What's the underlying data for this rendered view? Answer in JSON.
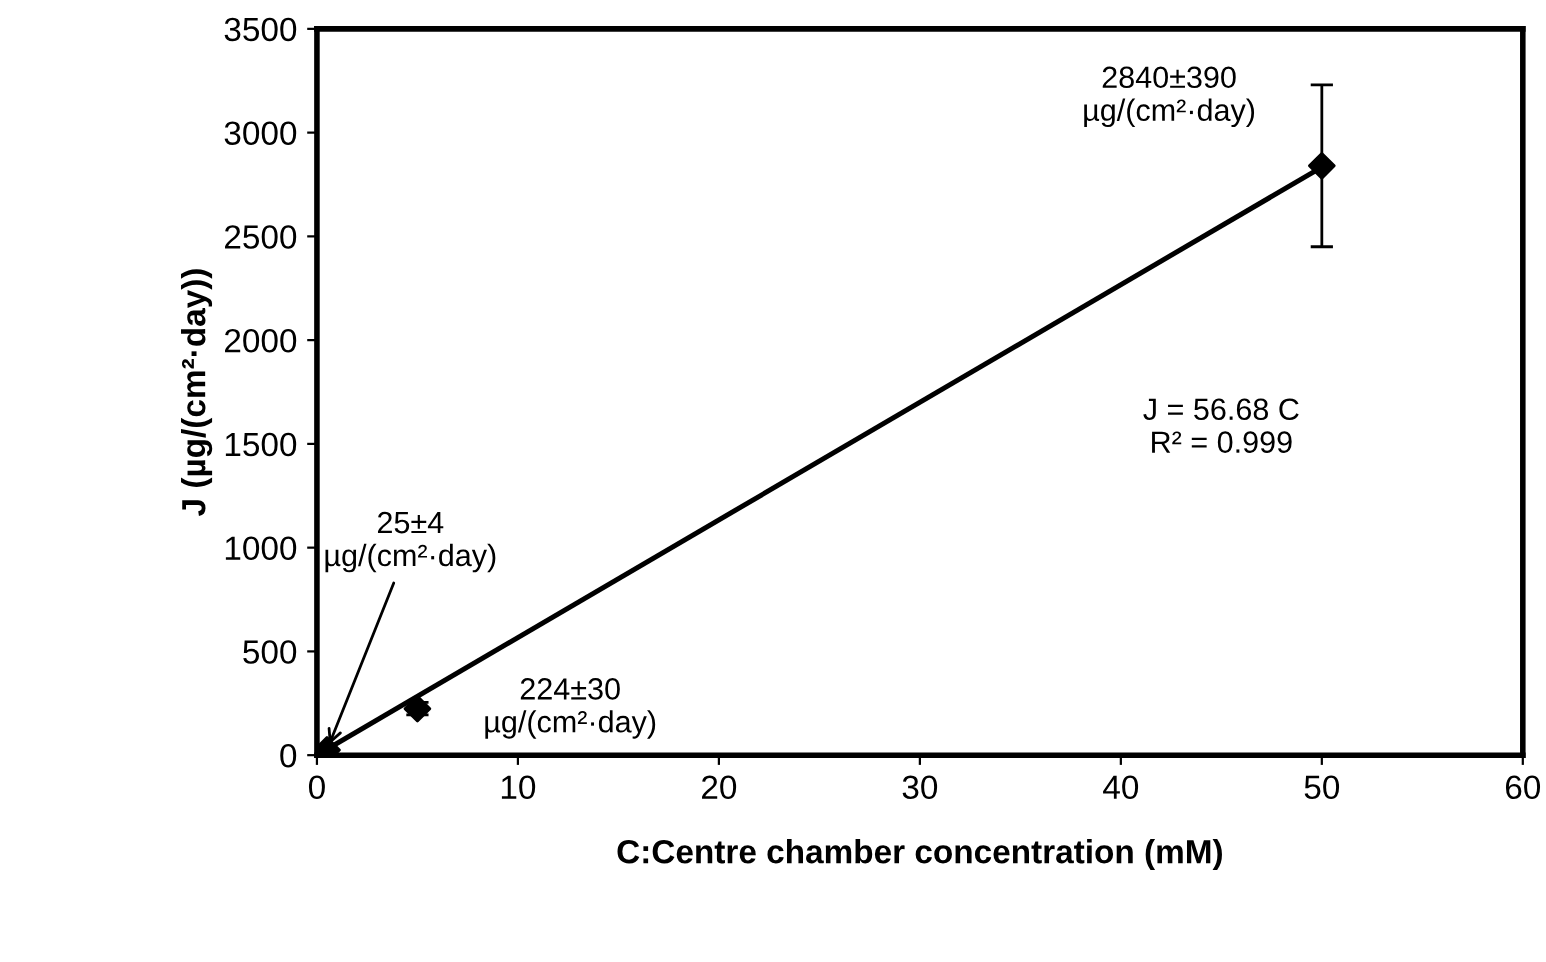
{
  "chart_data": {
    "type": "scatter",
    "xlabel": "C:Centre chamber concentration (mM)",
    "ylabel": "J (µg/(cm²·day))",
    "xlim": [
      0,
      60
    ],
    "xticks": [
      0,
      10,
      20,
      30,
      40,
      50,
      60
    ],
    "ylim": [
      0,
      3500
    ],
    "yticks": [
      0,
      500,
      1000,
      1500,
      2000,
      2500,
      3000,
      3500
    ],
    "grid": false,
    "legend": false,
    "marker": "diamond",
    "series": [
      {
        "color": "#000000",
        "x": [
          0.5,
          5,
          50
        ],
        "values": [
          25,
          224,
          2840
        ],
        "errors": [
          4,
          30,
          390
        ]
      },
      {
        "type": "line",
        "color": "#000000",
        "x": [
          0,
          50
        ],
        "values": [
          0,
          2834
        ],
        "line_style": "solid",
        "marker": "none"
      }
    ],
    "annotations": [
      {
        "text": "25±4\nµg/(cm²·day)",
        "x": 0.5,
        "y": 25
      },
      "224±30\nµg/(cm²·day)",
      {
        "text": "2840±390\nµg/(cm²·day)",
        "x": 50,
        "y": 2840
      },
      "J = 56.68 C\nR² = 0.999"
    ]
  }
}
